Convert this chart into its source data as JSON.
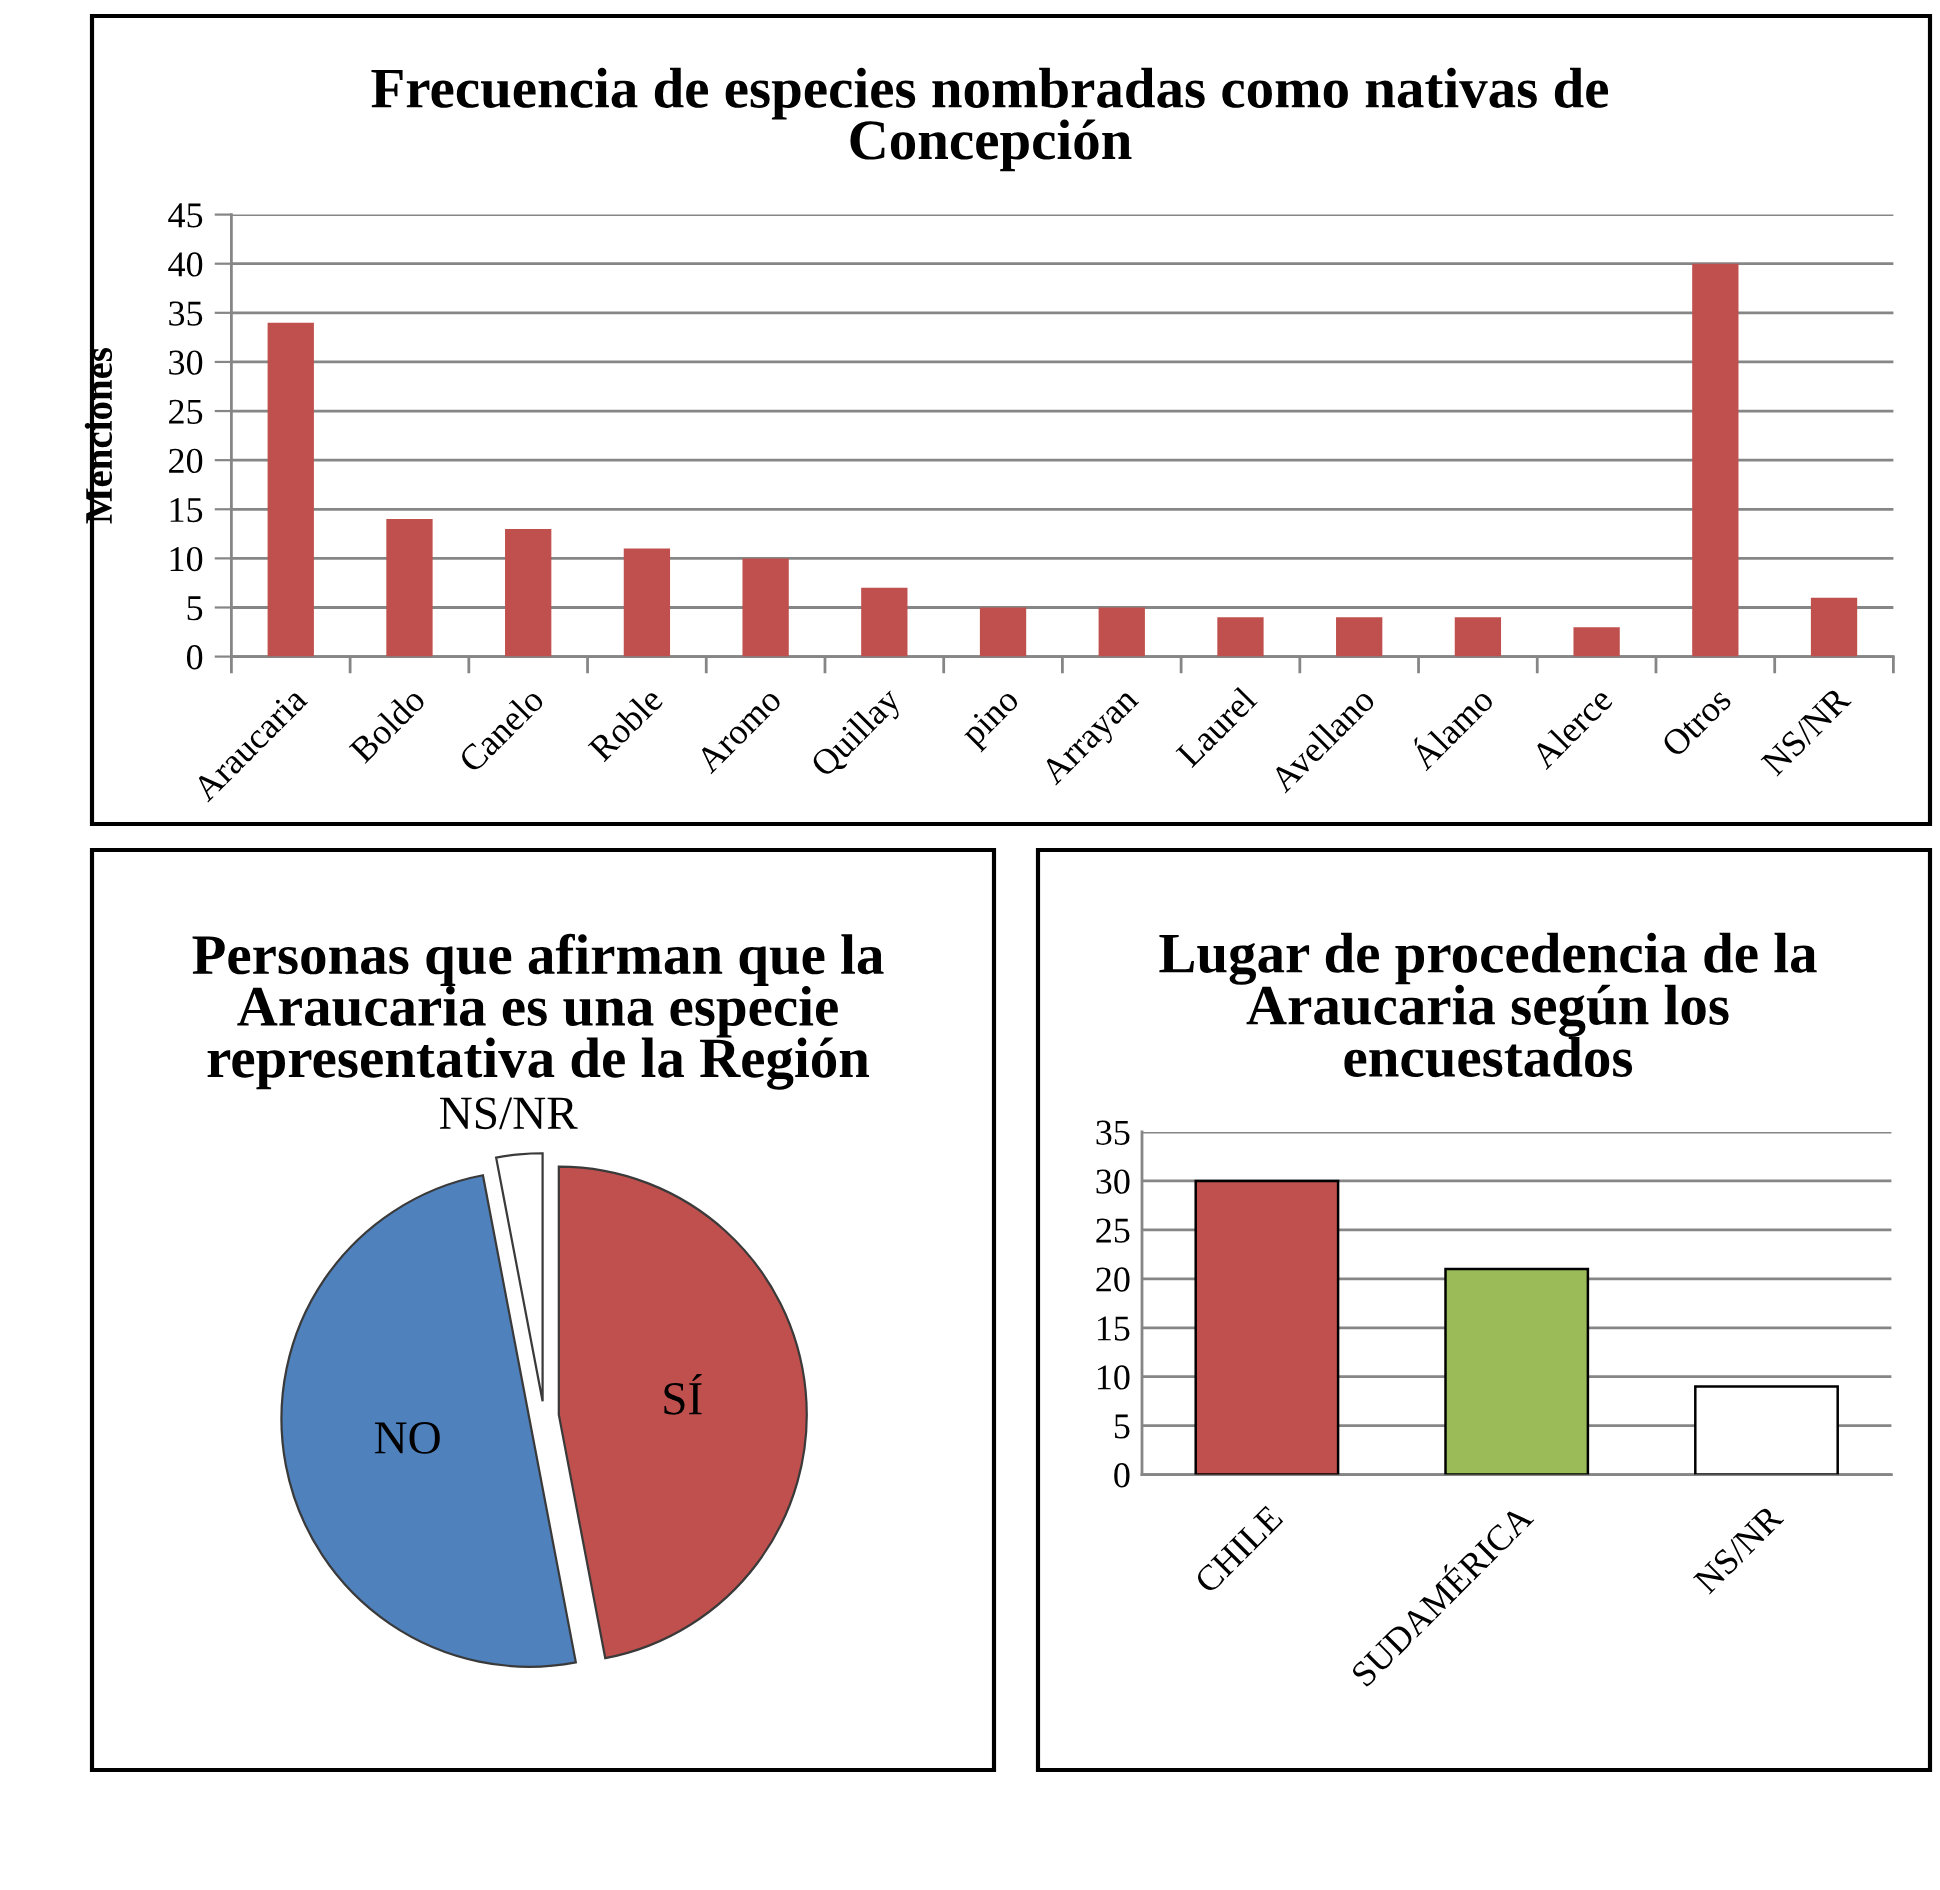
{
  "chart_data": [
    {
      "type": "bar",
      "title": "Frecuencia de especies nombradas como nativas de\nConcepción",
      "ylabel": "Menciones",
      "categories": [
        "Araucaria",
        "Boldo",
        "Canelo",
        "Roble",
        "Aromo",
        "Quillay",
        "pino",
        "Arrayan",
        "Laurel",
        "Avellano",
        "Álamo",
        "Alerce",
        "Otros",
        "NS/NR"
      ],
      "values": [
        34,
        14,
        13,
        11,
        10,
        7,
        5,
        5,
        4,
        4,
        4,
        3,
        40,
        6
      ],
      "color": "#c0504d",
      "ylim": [
        0,
        45
      ],
      "yticks": [
        0,
        5,
        10,
        15,
        20,
        25,
        30,
        35,
        40,
        45
      ],
      "grid": "y"
    },
    {
      "type": "pie",
      "title": "Personas que afirman que la\nAraucaria es una especie\nrepresentativa de la Región",
      "categories": [
        "SÍ",
        "NO",
        "NS/NR"
      ],
      "values": [
        47,
        50,
        3
      ],
      "colors": [
        "#c0504d",
        "#4f81bd",
        "#ffffff"
      ]
    },
    {
      "type": "bar",
      "title": "Lugar de procedencia de la\nAraucaria según los\nencuestados",
      "categories": [
        "CHILE",
        "SUDAMÉRICA",
        "NS/NR"
      ],
      "values": [
        30,
        21,
        9
      ],
      "colors": [
        "#c0504d",
        "#9bbb59",
        "#ffffff"
      ],
      "ylim": [
        0,
        35
      ],
      "yticks": [
        0,
        5,
        10,
        15,
        20,
        25,
        30,
        35
      ],
      "grid": "y"
    }
  ]
}
